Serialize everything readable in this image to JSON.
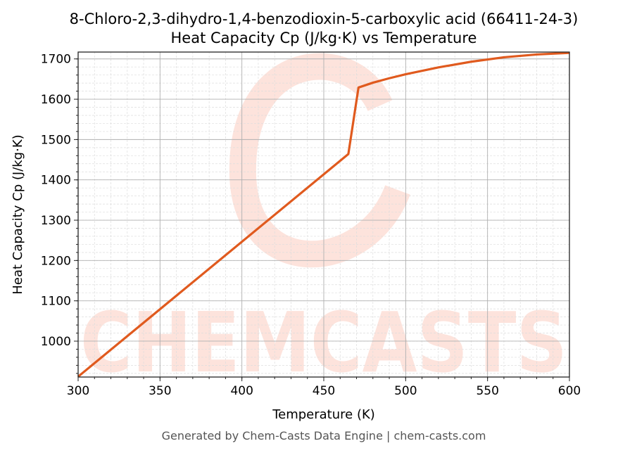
{
  "chart_data": {
    "type": "line",
    "title": "8-Chloro-2,3-dihydro-1,4-benzodioxin-5-carboxylic acid (66411-24-3)",
    "subtitle": "Heat Capacity Cp (J/kg·K) vs Temperature",
    "xlabel": "Temperature (K)",
    "ylabel": "Heat Capacity Cp (J/kg·K)",
    "xlim": [
      300,
      600
    ],
    "ylim": [
      911,
      1717
    ],
    "xticks": [
      300,
      350,
      400,
      450,
      500,
      550,
      600
    ],
    "yticks": [
      1000,
      1100,
      1200,
      1300,
      1400,
      1500,
      1600,
      1700
    ],
    "grid": true,
    "series": [
      {
        "name": "Cp",
        "color": "#e05a1e",
        "x": [
          300,
          465,
          471.2,
          480,
          490,
          500,
          520,
          540,
          560,
          580,
          600
        ],
        "y": [
          912,
          1464,
          1629,
          1641,
          1652,
          1662,
          1679,
          1693,
          1704,
          1711,
          1715
        ]
      }
    ],
    "watermark": "CHEMCASTS",
    "footer": "Generated by Chem-Casts Data Engine | chem-casts.com"
  }
}
